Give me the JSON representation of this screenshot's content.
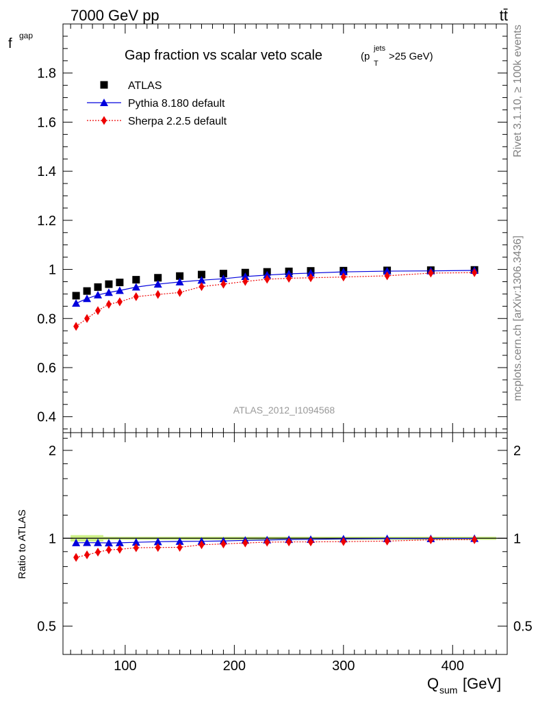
{
  "header": {
    "left": "7000 GeV pp",
    "right": "tt̄",
    "side_top": "Rivet 3.1.10, ≥ 100k events",
    "side_bottom": "mcplots.cern.ch [arXiv:1306.3436]",
    "analysis": "ATLAS_2012_I1094568"
  },
  "chart_data": {
    "type": "scatter",
    "title": "Gap fraction vs scalar veto scale",
    "title_suffix": "(p",
    "title_sub": "T",
    "title_sup": "jets",
    "title_tail": ">25 GeV)",
    "xlabel": "Q",
    "xlabel_sub": "sum",
    "xlabel_tail": " [GeV]",
    "ylabel": "f",
    "ylabel_sub": "gap",
    "ratio_ylabel": "Ratio to ATLAS",
    "xlim": [
      43,
      450
    ],
    "ylim": [
      0.335,
      2.0
    ],
    "ratio_ylim": [
      0.4,
      2.3
    ],
    "x_ticks": [
      100,
      200,
      300,
      400
    ],
    "x_tick_labels": [
      "100",
      "200",
      "300",
      "400"
    ],
    "y_ticks": [
      0.4,
      0.6,
      0.8,
      1.0,
      1.2,
      1.4,
      1.6,
      1.8
    ],
    "y_tick_labels": [
      "0.4",
      "0.6",
      "0.8",
      "1",
      "1.2",
      "1.4",
      "1.6",
      "1.8"
    ],
    "ratio_ticks": [
      0.5,
      1,
      2
    ],
    "ratio_tick_labels": [
      "0.5",
      "1",
      "2"
    ],
    "x": [
      55,
      65,
      75,
      85,
      95,
      110,
      130,
      150,
      170,
      190,
      210,
      230,
      250,
      270,
      300,
      340,
      380,
      420
    ],
    "bin_edges": [
      50,
      60,
      70,
      80,
      90,
      100,
      120,
      140,
      160,
      180,
      200,
      220,
      240,
      260,
      280,
      320,
      360,
      400,
      440
    ],
    "legend_position": "top-left",
    "series": [
      {
        "name": "ATLAS",
        "marker": "square",
        "color": "#000000",
        "values": [
          0.893,
          0.912,
          0.928,
          0.94,
          0.947,
          0.958,
          0.966,
          0.973,
          0.979,
          0.983,
          0.987,
          0.99,
          0.992,
          0.994,
          0.995,
          0.996,
          0.997,
          0.998
        ]
      },
      {
        "name": "Pythia 8.180 default",
        "marker": "triangle",
        "color": "#0000dd",
        "values": [
          0.862,
          0.881,
          0.896,
          0.906,
          0.914,
          0.928,
          0.94,
          0.949,
          0.956,
          0.962,
          0.971,
          0.977,
          0.982,
          0.985,
          0.99,
          0.993,
          0.994,
          0.996
        ]
      },
      {
        "name": "Sherpa 2.2.5 default",
        "marker": "diamond",
        "color": "#ee0000",
        "values": [
          0.768,
          0.8,
          0.832,
          0.858,
          0.868,
          0.889,
          0.898,
          0.906,
          0.93,
          0.94,
          0.951,
          0.96,
          0.964,
          0.966,
          0.969,
          0.974,
          0.985,
          0.987
        ]
      }
    ],
    "ratio_band_color": "#c8ef7a"
  }
}
